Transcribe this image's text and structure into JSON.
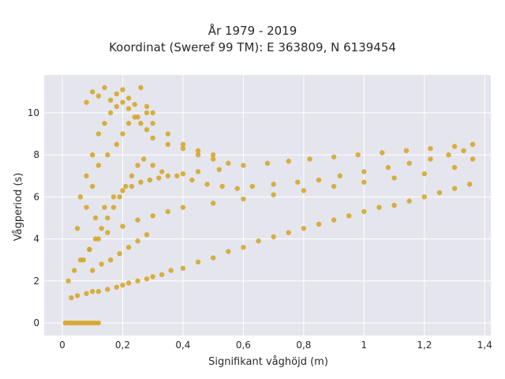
{
  "chart_data": {
    "type": "scatter",
    "title": "År 1979 - 2019",
    "subtitle": "Koordinat (Sweref 99 TM): E 363809, N 6139454",
    "xlabel": "Signifikant våghöjd (m)",
    "ylabel": "Vågperiod (s)",
    "xlim": [
      -0.06,
      1.42
    ],
    "ylim": [
      -0.6,
      11.8
    ],
    "x_ticks": [
      0,
      0.2,
      0.4,
      0.6,
      0.8,
      1,
      1.2,
      1.4
    ],
    "x_tick_labels": [
      "0",
      "0,2",
      "0,4",
      "0,6",
      "0,8",
      "1",
      "1,2",
      "1,4"
    ],
    "y_ticks": [
      0,
      2,
      4,
      6,
      8,
      10
    ],
    "y_tick_labels": [
      "0",
      "2",
      "4",
      "6",
      "8",
      "10"
    ],
    "grid": true,
    "colors": {
      "marker": "#d4a520",
      "plot_bg": "#e5e5ee",
      "grid": "#ffffff"
    },
    "series": [
      {
        "x": [
          0.01,
          0.02,
          0.03,
          0.04,
          0.05,
          0.06,
          0.07,
          0.08,
          0.09,
          0.1,
          0.11,
          0.12,
          0.03,
          0.05,
          0.08,
          0.1,
          0.12,
          0.15,
          0.18,
          0.2,
          0.22,
          0.25,
          0.28,
          0.3,
          0.33,
          0.36,
          0.4,
          0.45,
          0.5,
          0.55,
          0.6,
          0.65,
          0.7,
          0.75,
          0.8,
          0.85,
          0.9,
          0.95,
          1.0,
          1.05,
          1.1,
          1.15,
          1.2,
          1.25,
          1.3,
          1.35,
          0.02,
          0.04,
          0.06,
          0.09,
          0.12,
          0.15,
          0.2,
          0.25,
          0.3,
          0.35,
          0.4,
          0.5,
          0.6,
          0.7,
          0.8,
          0.9,
          1.0,
          1.1,
          1.2,
          1.3,
          1.36,
          0.05,
          0.08,
          0.1,
          0.12,
          0.15,
          0.18,
          0.2,
          0.22,
          0.25,
          0.28,
          0.3,
          0.35,
          0.4,
          0.45,
          0.5,
          0.06,
          0.08,
          0.1,
          0.12,
          0.14,
          0.16,
          0.18,
          0.2,
          0.22,
          0.24,
          0.26,
          0.28,
          0.3,
          0.35,
          0.4,
          0.45,
          0.5,
          0.55,
          0.07,
          0.09,
          0.11,
          0.13,
          0.15,
          0.17,
          0.19,
          0.21,
          0.23,
          0.25,
          0.27,
          0.3,
          0.33,
          0.38,
          0.43,
          0.48,
          0.53,
          0.58,
          0.63,
          0.7,
          0.78,
          0.85,
          0.92,
          1.0,
          1.08,
          1.15,
          1.22,
          1.28,
          1.33,
          0.08,
          0.1,
          0.12,
          0.14,
          0.16,
          0.18,
          0.2,
          0.22,
          0.24,
          0.26,
          0.28,
          0.3,
          0.1,
          0.13,
          0.16,
          0.19,
          0.22,
          0.25,
          0.28,
          0.11,
          0.14,
          0.17,
          0.2,
          0.23,
          0.26,
          0.29,
          0.32,
          0.35,
          0.4,
          0.45,
          0.52,
          0.6,
          0.68,
          0.75,
          0.82,
          0.9,
          0.98,
          1.06,
          1.14,
          1.22,
          1.3,
          1.36
        ],
        "y": [
          0,
          0,
          0,
          0,
          0,
          0,
          0,
          0,
          0,
          0,
          0,
          0,
          1.2,
          1.3,
          1.4,
          1.5,
          1.5,
          1.6,
          1.7,
          1.8,
          1.9,
          2.0,
          2.1,
          2.2,
          2.3,
          2.5,
          2.6,
          2.9,
          3.1,
          3.4,
          3.6,
          3.9,
          4.1,
          4.3,
          4.5,
          4.7,
          4.9,
          5.1,
          5.3,
          5.5,
          5.6,
          5.8,
          6.0,
          6.2,
          6.4,
          6.6,
          2.0,
          2.5,
          3.0,
          3.5,
          4.0,
          4.3,
          4.6,
          4.9,
          5.1,
          5.3,
          5.5,
          5.7,
          5.9,
          6.1,
          6.3,
          6.5,
          6.7,
          6.9,
          7.1,
          7.4,
          7.8,
          4.5,
          5.5,
          6.5,
          7.5,
          8.0,
          8.5,
          9.0,
          9.5,
          9.8,
          10.0,
          9.5,
          9.0,
          8.5,
          8.2,
          8.0,
          6.0,
          7.0,
          8.0,
          9.0,
          9.5,
          10.0,
          10.3,
          10.5,
          10.2,
          9.8,
          9.5,
          9.2,
          8.8,
          8.5,
          8.3,
          8.0,
          7.8,
          7.6,
          3.0,
          3.5,
          4.0,
          4.5,
          5.0,
          5.5,
          6.0,
          6.5,
          7.0,
          7.5,
          7.8,
          7.5,
          7.2,
          7.0,
          6.8,
          6.6,
          6.5,
          6.4,
          6.5,
          6.6,
          6.7,
          6.8,
          7.0,
          7.2,
          7.4,
          7.6,
          7.8,
          8.0,
          8.2,
          10.5,
          11.0,
          10.8,
          11.2,
          10.6,
          10.9,
          11.1,
          10.7,
          10.4,
          11.2,
          10.3,
          10.0,
          2.5,
          2.8,
          3.0,
          3.3,
          3.6,
          3.9,
          4.2,
          5.0,
          5.5,
          6.0,
          6.3,
          6.5,
          6.7,
          6.8,
          6.9,
          7.0,
          7.1,
          7.2,
          7.3,
          7.5,
          7.6,
          7.7,
          7.8,
          7.9,
          8.0,
          8.1,
          8.2,
          8.3,
          8.4,
          8.5
        ]
      }
    ]
  }
}
